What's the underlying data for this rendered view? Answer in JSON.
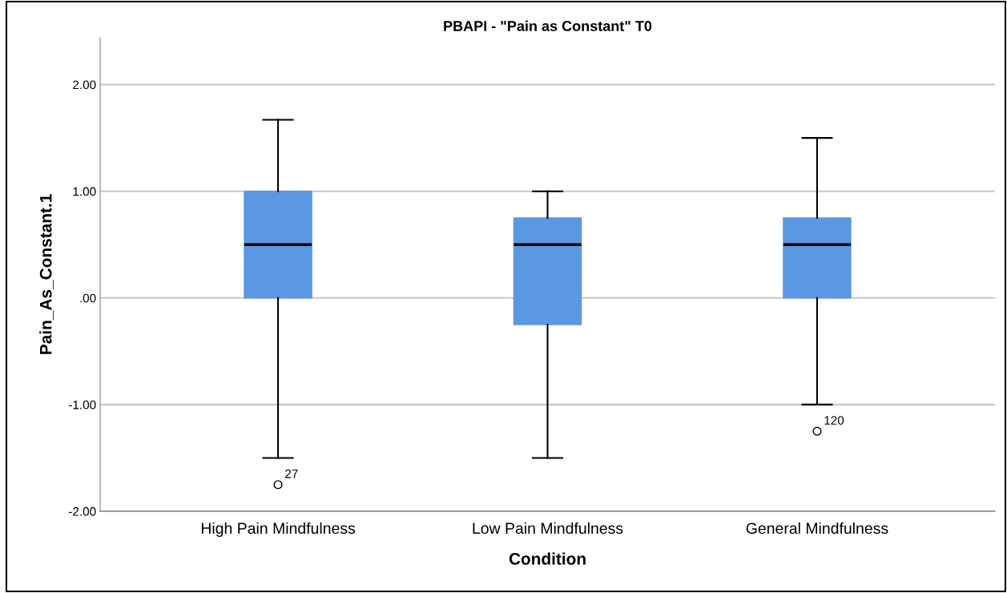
{
  "chart_data": {
    "type": "box",
    "title": "PBAPI - \"Pain as Constant\" T0",
    "xlabel": "Condition",
    "ylabel": "Pain_As_Constant.1",
    "categories": [
      "High Pain Mindfulness",
      "Low Pain Mindfulness",
      "General Mindfulness"
    ],
    "boxes": [
      {
        "low": -1.5,
        "q1": 0,
        "median": 0.5,
        "q3": 1.0,
        "high": 1.67,
        "outliers": [
          -1.75
        ]
      },
      {
        "low": -1.5,
        "q1": -0.25,
        "median": 0.5,
        "q3": 0.75,
        "high": 1.0
      },
      {
        "low": -1.0,
        "q1": 0,
        "median": 0.5,
        "q3": 0.75,
        "high": 1.5,
        "outliers": [
          -1.25
        ]
      }
    ],
    "color": "#5a98e4",
    "ylim": [
      -2.0,
      2.44
    ],
    "yticks": [
      {
        "value": -2,
        "label": "-2.00"
      },
      {
        "value": -1,
        "label": "-1.00"
      },
      {
        "value": 0,
        "label": ".00"
      },
      {
        "value": 1,
        "label": "1.00"
      },
      {
        "value": 2,
        "label": "2.00"
      }
    ],
    "grid": "y",
    "annotations": [
      "27",
      "120"
    ]
  }
}
